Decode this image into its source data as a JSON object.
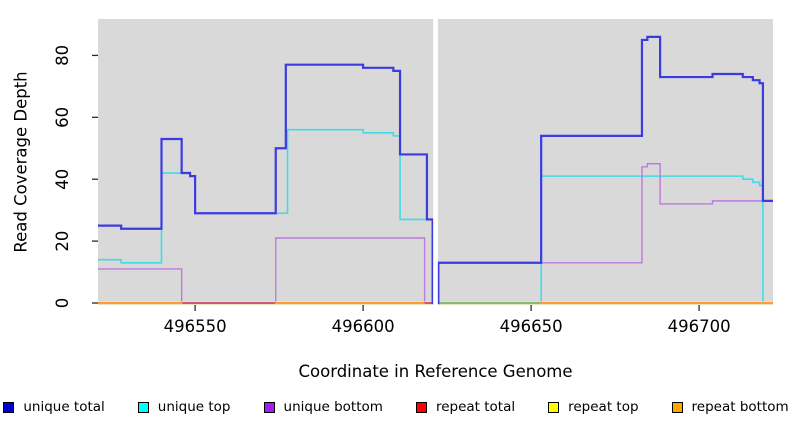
{
  "chart_data": {
    "type": "line",
    "subtype": "step",
    "title": "",
    "xlabel": "Coordinate in Reference Genome",
    "ylabel": "Read Coverage Depth",
    "x_ticks": [
      496550,
      496600,
      496650,
      496700
    ],
    "y_ticks": [
      0,
      20,
      40,
      60,
      80
    ],
    "xlim": [
      496521.1,
      496722.0
    ],
    "ylim": [
      0,
      91.8
    ],
    "plot_bg": "#d9d9d9",
    "grid": "none",
    "legend_position": "bottom",
    "gap": {
      "x_start": 496620.85,
      "x_end": 496622.25,
      "color": "#ffffff",
      "note": "vertical white band, no data"
    },
    "zero_line_overlaps": [
      {
        "x_start": 496546.2,
        "x_end": 496573.8,
        "y": 0,
        "color": "#c4517d",
        "note": "unique bottom at 0 blended with repeat lines"
      },
      {
        "x_start": 496618.3,
        "x_end": 496620.7,
        "y": 0,
        "color": "#c4517d",
        "note": "unique bottom at 0 blended with repeat lines"
      },
      {
        "x_start": 496622.4,
        "x_end": 496652.7,
        "y": 0,
        "color": "#7cbb7c",
        "note": "unique top at 0 blended with repeat lines"
      }
    ],
    "series": [
      {
        "name": "unique total",
        "key": "unique-total",
        "line_color": "#3b3be2",
        "legend_color": "#0000cc",
        "line_width": 2.2,
        "steps": [
          [
            496521.1,
            25
          ],
          [
            496528,
            24
          ],
          [
            496540,
            53
          ],
          [
            496546,
            42
          ],
          [
            496548.5,
            41
          ],
          [
            496550,
            29
          ],
          [
            496574,
            50
          ],
          [
            496577,
            77
          ],
          [
            496600,
            76
          ],
          [
            496609,
            75
          ],
          [
            496611,
            48
          ],
          [
            496619,
            27
          ],
          [
            496620.7,
            0
          ],
          [
            496622.4,
            13
          ],
          [
            496653,
            54
          ],
          [
            496683,
            85
          ],
          [
            496684.6,
            86
          ],
          [
            496688.4,
            73
          ],
          [
            496704,
            74
          ],
          [
            496713,
            73
          ],
          [
            496716,
            72
          ],
          [
            496718,
            71
          ],
          [
            496719,
            33
          ]
        ]
      },
      {
        "name": "unique top",
        "key": "unique-top",
        "line_color": "#3fdce8",
        "legend_color": "#00ffff",
        "line_width": 1.6,
        "steps": [
          [
            496521.1,
            14
          ],
          [
            496528,
            13
          ],
          [
            496540,
            42
          ],
          [
            496548.5,
            41
          ],
          [
            496550,
            29
          ],
          [
            496577.5,
            56
          ],
          [
            496600,
            55
          ],
          [
            496609,
            54
          ],
          [
            496611,
            27
          ],
          [
            496620.7,
            0
          ],
          [
            496653,
            41
          ],
          [
            496713,
            40
          ],
          [
            496716,
            39
          ],
          [
            496718,
            38
          ],
          [
            496719,
            0
          ]
        ]
      },
      {
        "name": "unique bottom",
        "key": "unique-bottom",
        "line_color": "#bd7ade",
        "legend_color": "#a020f0",
        "line_width": 1.4,
        "steps": [
          [
            496521.1,
            11
          ],
          [
            496546,
            0
          ],
          [
            496574,
            21
          ],
          [
            496618.3,
            0
          ],
          [
            496622.4,
            13
          ],
          [
            496683,
            44
          ],
          [
            496684.6,
            45
          ],
          [
            496688.4,
            32
          ],
          [
            496704,
            33
          ]
        ]
      },
      {
        "name": "repeat total",
        "key": "repeat-total",
        "line_color": "#dd2222",
        "legend_color": "#ff0000",
        "line_width": 1.4,
        "steps": [
          [
            496521.1,
            0
          ]
        ]
      },
      {
        "name": "repeat top",
        "key": "repeat-top",
        "line_color": "#efedae",
        "legend_color": "#ffff00",
        "line_width": 3,
        "steps": [
          [
            496521.1,
            0
          ]
        ]
      },
      {
        "name": "repeat bottom",
        "key": "repeat-bottom",
        "line_color": "#ff9122",
        "legend_color": "#ffa500",
        "line_width": 1.8,
        "steps": [
          [
            496521.1,
            0
          ]
        ]
      }
    ]
  }
}
